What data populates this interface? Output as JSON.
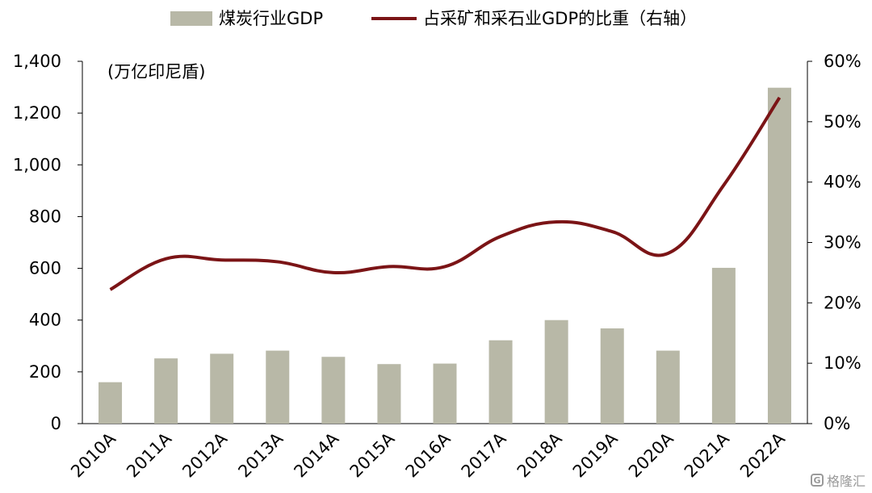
{
  "chart_data": {
    "type": "bar",
    "categories": [
      "2010A",
      "2011A",
      "2012A",
      "2013A",
      "2014A",
      "2015A",
      "2016A",
      "2017A",
      "2018A",
      "2019A",
      "2020A",
      "2021A",
      "2022A"
    ],
    "series": [
      {
        "name": "煤炭行业GDP",
        "type": "bar",
        "axis": "left",
        "color": "#b8b8a7",
        "values": [
          160,
          252,
          270,
          282,
          258,
          230,
          232,
          322,
          400,
          368,
          282,
          602,
          1298
        ]
      },
      {
        "name": "占采矿和采石业GDP的比重（右轴）",
        "type": "line",
        "axis": "right",
        "color": "#7b1416",
        "values": [
          22.2,
          27.3,
          27.1,
          26.8,
          25.0,
          26.0,
          26.0,
          31.0,
          33.4,
          31.8,
          28.2,
          39.5,
          54.0
        ]
      }
    ],
    "yunit": "(万亿印尼盾)",
    "ylim": [
      0,
      1400
    ],
    "yticks": [
      "0",
      "200",
      "400",
      "600",
      "800",
      "1,000",
      "1,200",
      "1,400"
    ],
    "y2lim": [
      0,
      60
    ],
    "y2ticks": [
      "0%",
      "10%",
      "20%",
      "30%",
      "40%",
      "50%",
      "60%"
    ],
    "legend": "top",
    "grid": false
  },
  "watermark": {
    "icon": "G",
    "text": "格隆汇"
  }
}
